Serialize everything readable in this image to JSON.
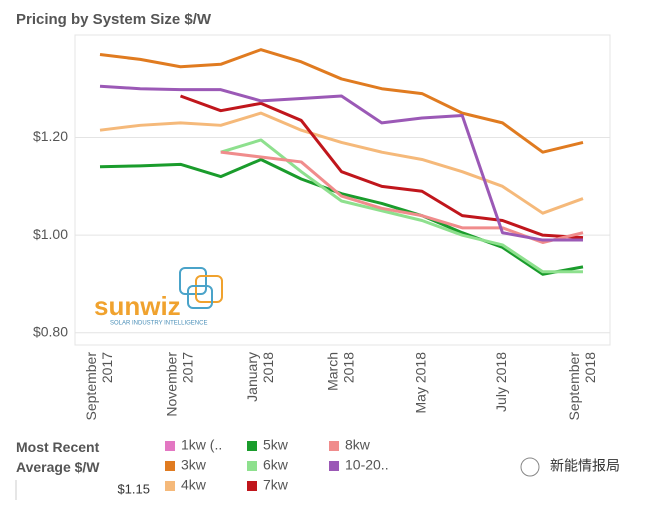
{
  "chart_data": {
    "type": "line",
    "title": "Pricing by System Size $/W",
    "categories": [
      "September 2017",
      null,
      "November 2017",
      null,
      "January 2018",
      null,
      "March 2018",
      null,
      "May 2018",
      null,
      "July 2018",
      null,
      "September 2018"
    ],
    "ylim": [
      0.775,
      1.41
    ],
    "yticks": [
      {
        "value": 0.8,
        "label": "$0.80"
      },
      {
        "value": 1.0,
        "label": "$1.00"
      },
      {
        "value": 1.2,
        "label": "$1.20"
      }
    ],
    "grid": true,
    "series": [
      {
        "name": "1kw (..",
        "color": "#e377c2",
        "values": [
          null,
          null,
          null,
          null,
          null,
          null,
          null,
          null,
          null,
          null,
          null,
          null,
          null
        ]
      },
      {
        "name": "3kw",
        "color": "#e07b20",
        "values": [
          1.37,
          1.36,
          1.345,
          1.35,
          1.38,
          1.355,
          1.32,
          1.3,
          1.29,
          1.25,
          1.23,
          1.17,
          1.19
        ]
      },
      {
        "name": "4kw",
        "color": "#f5b97a",
        "values": [
          1.215,
          1.225,
          1.23,
          1.225,
          1.25,
          1.215,
          1.19,
          1.17,
          1.155,
          1.13,
          1.1,
          1.045,
          1.075
        ]
      },
      {
        "name": "5kw",
        "color": "#1a9c2c",
        "values": [
          1.14,
          1.142,
          1.145,
          1.12,
          1.155,
          1.115,
          1.085,
          1.065,
          1.04,
          1.005,
          0.975,
          0.92,
          0.935
        ]
      },
      {
        "name": "6kw",
        "color": "#8ee08e",
        "values": [
          null,
          null,
          null,
          1.17,
          1.195,
          1.13,
          1.07,
          1.05,
          1.03,
          1.0,
          0.98,
          0.925,
          0.925
        ]
      },
      {
        "name": "7kw",
        "color": "#c0161c",
        "values": [
          null,
          null,
          1.285,
          1.255,
          1.27,
          1.235,
          1.13,
          1.1,
          1.09,
          1.04,
          1.03,
          1.0,
          0.995
        ]
      },
      {
        "name": "8kw",
        "color": "#f08c8c",
        "values": [
          null,
          null,
          null,
          1.17,
          1.16,
          1.15,
          1.08,
          1.055,
          1.04,
          1.015,
          1.015,
          0.985,
          1.005
        ]
      },
      {
        "name": "10-20..",
        "color": "#9b59b6",
        "values": [
          1.305,
          1.3,
          1.298,
          1.298,
          1.275,
          1.28,
          1.285,
          1.23,
          1.24,
          1.245,
          1.005,
          0.99,
          0.99
        ]
      }
    ],
    "legend_title": "Most Recent Average $/W",
    "legend_value": "$1.15",
    "logo": {
      "name": "sunwiz",
      "tagline": "SOLAR INDUSTRY INTELLIGENCE"
    },
    "watermark": "新能情报局"
  }
}
